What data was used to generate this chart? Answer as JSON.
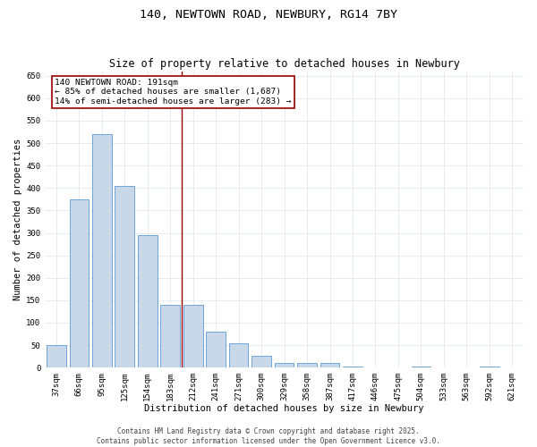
{
  "title_line1": "140, NEWTOWN ROAD, NEWBURY, RG14 7BY",
  "title_line2": "Size of property relative to detached houses in Newbury",
  "xlabel": "Distribution of detached houses by size in Newbury",
  "ylabel": "Number of detached properties",
  "categories": [
    "37sqm",
    "66sqm",
    "95sqm",
    "125sqm",
    "154sqm",
    "183sqm",
    "212sqm",
    "241sqm",
    "271sqm",
    "300sqm",
    "329sqm",
    "358sqm",
    "387sqm",
    "417sqm",
    "446sqm",
    "475sqm",
    "504sqm",
    "533sqm",
    "563sqm",
    "592sqm",
    "621sqm"
  ],
  "values": [
    50,
    375,
    520,
    405,
    295,
    140,
    140,
    80,
    55,
    27,
    10,
    10,
    10,
    2,
    0,
    0,
    3,
    0,
    0,
    2,
    0
  ],
  "bar_color": "#c8d8e8",
  "bar_edge_color": "#5b9bd5",
  "vline_color": "#990000",
  "annotation_text": "140 NEWTOWN ROAD: 191sqm\n← 85% of detached houses are smaller (1,687)\n14% of semi-detached houses are larger (283) →",
  "annotation_box_color": "#ffffff",
  "annotation_box_edge_color": "#990000",
  "ylim": [
    0,
    660
  ],
  "yticks": [
    0,
    50,
    100,
    150,
    200,
    250,
    300,
    350,
    400,
    450,
    500,
    550,
    600,
    650
  ],
  "bg_color": "#ffffff",
  "grid_color": "#dde4ef",
  "footer_line1": "Contains HM Land Registry data © Crown copyright and database right 2025.",
  "footer_line2": "Contains public sector information licensed under the Open Government Licence v3.0.",
  "title1_fontsize": 9.5,
  "title2_fontsize": 8.5,
  "axis_label_fontsize": 7.5,
  "tick_fontsize": 6.5,
  "annotation_fontsize": 6.8,
  "footer_fontsize": 5.5
}
